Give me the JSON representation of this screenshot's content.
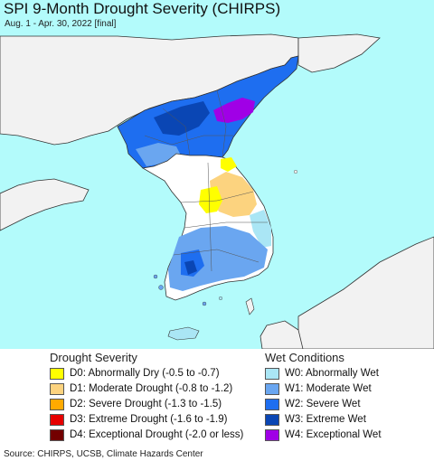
{
  "header": {
    "title": "SPI 9-Month Drought Severity (CHIRPS)",
    "subtitle": "Aug. 1 - Apr. 30, 2022 [final]"
  },
  "legend": {
    "drought": {
      "heading": "Drought Severity",
      "items": [
        {
          "label": "D0: Abnormally Dry (-0.5 to -0.7)",
          "color": "#ffff00"
        },
        {
          "label": "D1: Moderate Drought (-0.8 to -1.2)",
          "color": "#fcd37f"
        },
        {
          "label": "D2: Severe Drought (-1.3 to -1.5)",
          "color": "#ffaa00"
        },
        {
          "label": "D3: Extreme Drought (-1.6 to -1.9)",
          "color": "#e60000"
        },
        {
          "label": "D4: Exceptional Drought (-2.0 or less)",
          "color": "#730000"
        }
      ]
    },
    "wet": {
      "heading": "Wet Conditions",
      "items": [
        {
          "label": "W0: Abnormally Wet",
          "color": "#aae6f5"
        },
        {
          "label": "W1: Moderate Wet",
          "color": "#6aa6f0"
        },
        {
          "label": "W2: Severe Wet",
          "color": "#1e6ef0"
        },
        {
          "label": "W3: Extreme Wet",
          "color": "#0a46b4"
        },
        {
          "label": "W4: Exceptional Wet",
          "color": "#a000e6"
        }
      ]
    }
  },
  "footer": {
    "source": "Source: CHIRPS, UCSB, Climate Hazards Center"
  },
  "map": {
    "ocean_color": "#b3fbfb",
    "land_color": "#f2f2f2",
    "neutral_color": "#ffffff"
  }
}
